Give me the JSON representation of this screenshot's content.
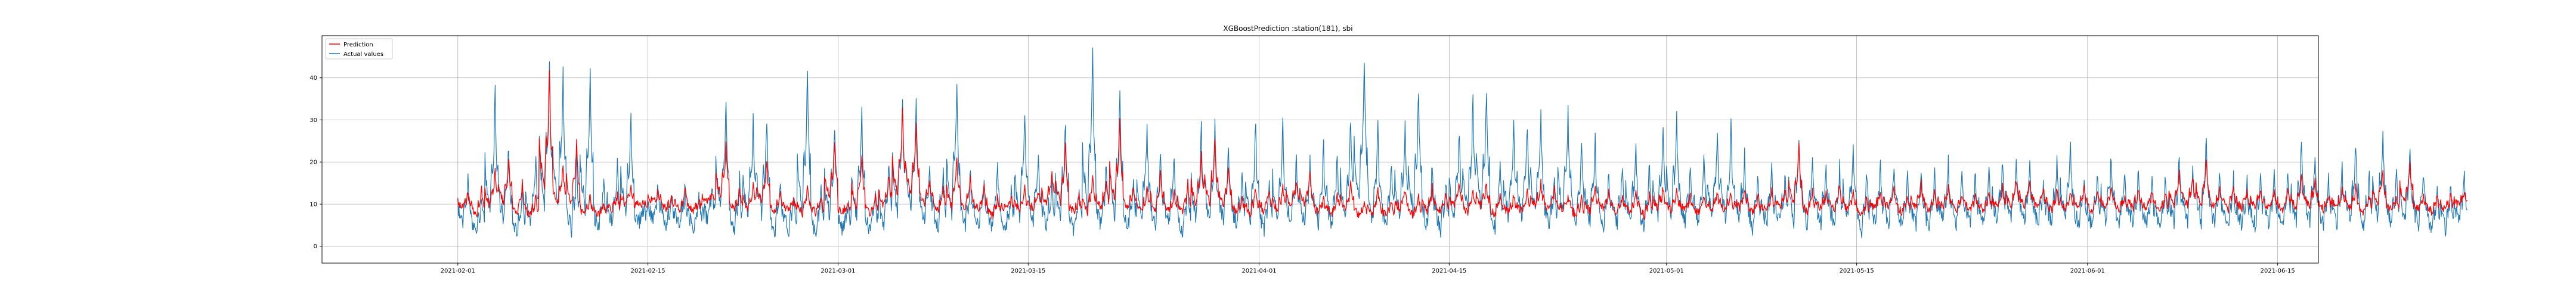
{
  "chart_data": {
    "type": "line",
    "title": "XGBoostPrediction :station(181), sbi",
    "xlabel": "",
    "ylabel": "",
    "x_start": "2021-02-01",
    "x_end": "2021-06-10",
    "xlim": [
      "2021-01-22",
      "2021-06-18"
    ],
    "ylim": [
      -4,
      50
    ],
    "grid": true,
    "legend_position": "top-left",
    "x_ticks": [
      "2021-02-01",
      "2021-02-15",
      "2021-03-01",
      "2021-03-15",
      "2021-04-01",
      "2021-04-15",
      "2021-05-01",
      "2021-05-15",
      "2021-06-01",
      "2021-06-15"
    ],
    "y_ticks": [
      0,
      10,
      20,
      30,
      40
    ],
    "series": [
      {
        "name": "Prediction",
        "color": "#ff0000",
        "daily_peak": [
          13,
          14,
          19,
          21,
          15,
          12,
          41,
          19,
          25,
          12,
          10,
          12,
          15,
          10,
          13,
          12,
          14,
          11,
          13,
          24,
          14,
          15,
          20,
          13,
          11,
          14,
          12,
          25,
          10,
          22,
          12,
          17,
          33,
          29,
          16,
          14,
          22,
          16,
          14,
          12,
          12,
          14,
          13,
          18,
          24,
          12,
          17,
          16,
          30,
          14,
          14,
          18,
          13,
          15,
          22,
          26,
          18,
          12,
          14,
          14,
          14,
          16,
          17,
          12,
          13,
          15,
          10,
          14,
          10,
          13,
          12,
          14,
          13,
          15,
          13,
          15,
          13,
          12,
          13,
          15,
          14,
          12,
          12,
          14,
          13,
          12,
          13,
          12,
          14,
          14,
          12,
          12,
          13,
          13,
          14,
          12,
          13,
          14,
          24,
          13,
          13,
          15,
          14,
          12,
          13,
          14,
          12,
          15,
          13,
          14,
          12,
          12,
          13,
          14,
          16,
          16,
          14,
          14,
          13,
          14,
          13,
          14,
          12,
          14,
          13,
          13,
          18,
          17,
          21,
          14,
          15,
          13,
          14,
          13,
          14,
          17,
          16,
          12,
          14,
          14,
          12,
          18,
          12,
          20,
          12,
          12,
          12,
          13
        ],
        "daily_base": [
          8,
          5,
          7,
          8,
          6,
          6,
          7,
          8,
          6,
          6,
          7,
          8,
          9,
          10,
          10,
          8,
          7,
          8,
          10,
          9,
          7,
          7,
          8,
          7,
          8,
          6,
          7,
          8,
          8,
          6,
          7,
          8,
          7,
          8,
          9,
          7,
          6,
          7,
          7,
          6,
          8,
          7,
          8,
          8,
          7,
          7,
          6,
          7,
          6,
          8,
          7,
          6,
          7,
          6,
          7,
          6,
          8,
          7,
          6,
          7,
          7,
          8,
          8,
          7,
          6,
          7,
          7,
          6,
          7,
          8,
          6,
          7,
          7,
          8,
          7,
          8,
          6,
          7,
          7,
          8,
          7,
          8,
          6,
          7,
          8,
          7,
          7,
          6,
          8,
          7,
          8,
          7,
          8,
          7,
          8,
          7,
          7,
          8,
          7,
          7,
          8,
          7,
          7,
          6,
          8,
          8,
          7,
          8,
          7,
          8,
          8,
          8,
          7,
          8,
          8,
          8,
          8,
          7,
          8,
          8,
          7,
          8,
          8,
          8,
          8,
          7,
          8,
          8,
          7,
          8,
          7,
          8,
          8,
          8,
          7,
          7,
          8,
          8,
          8,
          8,
          7,
          8,
          8,
          8,
          8,
          7,
          8,
          9
        ]
      },
      {
        "name": "Actual values",
        "color": "#1f77b4",
        "daily_peak": [
          17,
          13,
          37,
          24,
          14,
          22,
          45,
          41,
          20,
          42,
          16,
          19,
          31,
          10,
          14,
          13,
          15,
          12,
          14,
          33,
          16,
          31,
          31,
          15,
          12,
          42,
          14,
          29,
          11,
          33,
          13,
          20,
          36,
          34,
          18,
          18,
          40,
          18,
          16,
          20,
          13,
          32,
          22,
          17,
          30,
          15,
          47,
          20,
          37,
          16,
          29,
          22,
          22,
          16,
          28,
          29,
          23,
          18,
          30,
          16,
          29,
          21,
          20,
          24,
          23,
          31,
          45,
          28,
          20,
          28,
          38,
          20,
          16,
          28,
          35,
          38,
          20,
          30,
          29,
          31,
          18,
          32,
          26,
          25,
          18,
          20,
          25,
          20,
          28,
          32,
          19,
          23,
          28,
          29,
          22,
          17,
          20,
          18,
          27,
          22,
          20,
          19,
          25,
          18,
          19,
          20,
          17,
          18,
          17,
          20,
          18,
          18,
          20,
          21,
          21,
          20,
          16,
          21,
          25,
          17,
          18,
          22,
          18,
          18,
          16,
          17,
          21,
          20,
          26,
          18,
          17,
          16,
          17,
          18,
          18,
          25,
          22,
          17,
          20,
          24,
          18,
          27,
          18,
          22,
          18,
          15,
          14,
          18
        ],
        "daily_base": [
          2,
          0,
          1,
          2,
          0,
          1,
          1,
          2,
          0,
          0,
          1,
          2,
          3,
          5,
          5,
          3,
          2,
          3,
          5,
          4,
          1,
          1,
          2,
          1,
          2,
          0,
          1,
          2,
          2,
          0,
          1,
          2,
          1,
          2,
          3,
          1,
          0,
          1,
          1,
          0,
          2,
          1,
          2,
          2,
          1,
          1,
          0,
          1,
          0,
          2,
          1,
          0,
          1,
          0,
          1,
          0,
          2,
          1,
          0,
          1,
          1,
          2,
          2,
          1,
          0,
          1,
          1,
          0,
          1,
          2,
          0,
          1,
          1,
          2,
          1,
          2,
          0,
          1,
          1,
          2,
          1,
          2,
          0,
          1,
          2,
          1,
          1,
          0,
          2,
          1,
          2,
          1,
          2,
          1,
          2,
          1,
          1,
          2,
          1,
          1,
          2,
          1,
          1,
          0,
          2,
          2,
          1,
          2,
          1,
          2,
          2,
          2,
          1,
          2,
          2,
          2,
          2,
          1,
          2,
          2,
          1,
          2,
          2,
          2,
          2,
          1,
          2,
          2,
          1,
          2,
          1,
          2,
          2,
          2,
          1,
          1,
          2,
          2,
          2,
          2,
          1,
          2,
          2,
          2,
          2,
          1,
          2,
          3
        ]
      }
    ]
  }
}
